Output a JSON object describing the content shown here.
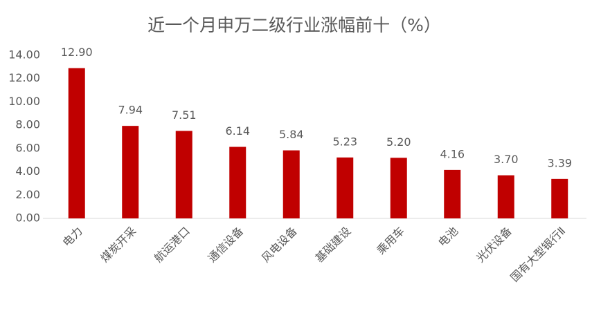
{
  "chart_data": {
    "type": "bar",
    "title": "近一个月申万二级行业涨幅前十（%）",
    "categories": [
      "电力",
      "煤炭开采",
      "航运港口",
      "通信设备",
      "风电设备",
      "基础建设",
      "乘用车",
      "电池",
      "光伏设备",
      "国有大型银行Ⅱ"
    ],
    "values": [
      12.9,
      7.94,
      7.51,
      6.14,
      5.84,
      5.23,
      5.2,
      4.16,
      3.7,
      3.39
    ],
    "value_labels": [
      "12.90",
      "7.94",
      "7.51",
      "6.14",
      "5.84",
      "5.23",
      "5.20",
      "4.16",
      "3.70",
      "3.39"
    ],
    "color": "#c00000",
    "ylim": [
      0,
      14
    ],
    "yticks": [
      {
        "value": 0,
        "label": "0.00"
      },
      {
        "value": 2,
        "label": "2.00"
      },
      {
        "value": 4,
        "label": "4.00"
      },
      {
        "value": 6,
        "label": "6.00"
      },
      {
        "value": 8,
        "label": "8.00"
      },
      {
        "value": 10,
        "label": "10.00"
      },
      {
        "value": 12,
        "label": "12.00"
      },
      {
        "value": 14,
        "label": "14.00"
      }
    ],
    "grid": false
  }
}
